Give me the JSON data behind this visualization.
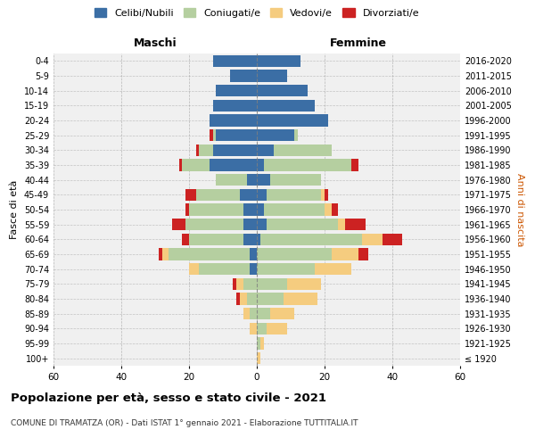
{
  "age_groups": [
    "100+",
    "95-99",
    "90-94",
    "85-89",
    "80-84",
    "75-79",
    "70-74",
    "65-69",
    "60-64",
    "55-59",
    "50-54",
    "45-49",
    "40-44",
    "35-39",
    "30-34",
    "25-29",
    "20-24",
    "15-19",
    "10-14",
    "5-9",
    "0-4"
  ],
  "birth_years": [
    "≤ 1920",
    "1921-1925",
    "1926-1930",
    "1931-1935",
    "1936-1940",
    "1941-1945",
    "1946-1950",
    "1951-1955",
    "1956-1960",
    "1961-1965",
    "1966-1970",
    "1971-1975",
    "1976-1980",
    "1981-1985",
    "1986-1990",
    "1991-1995",
    "1996-2000",
    "2001-2005",
    "2006-2010",
    "2011-2015",
    "2016-2020"
  ],
  "male": {
    "celibi": [
      0,
      0,
      0,
      0,
      0,
      0,
      2,
      2,
      4,
      4,
      4,
      5,
      3,
      14,
      13,
      12,
      14,
      13,
      12,
      8,
      13
    ],
    "coniugati": [
      0,
      0,
      0,
      2,
      3,
      4,
      15,
      24,
      16,
      17,
      16,
      13,
      9,
      8,
      4,
      1,
      0,
      0,
      0,
      0,
      0
    ],
    "vedovi": [
      0,
      0,
      2,
      2,
      2,
      2,
      3,
      2,
      0,
      0,
      0,
      0,
      0,
      0,
      0,
      0,
      0,
      0,
      0,
      0,
      0
    ],
    "divorziati": [
      0,
      0,
      0,
      0,
      1,
      1,
      0,
      1,
      2,
      4,
      1,
      3,
      0,
      1,
      1,
      1,
      0,
      0,
      0,
      0,
      0
    ]
  },
  "female": {
    "nubili": [
      0,
      0,
      0,
      0,
      0,
      0,
      0,
      0,
      1,
      3,
      2,
      3,
      4,
      2,
      5,
      11,
      21,
      17,
      15,
      9,
      13
    ],
    "coniugate": [
      0,
      1,
      3,
      4,
      8,
      9,
      17,
      22,
      30,
      21,
      18,
      16,
      15,
      26,
      17,
      1,
      0,
      0,
      0,
      0,
      0
    ],
    "vedove": [
      1,
      1,
      6,
      7,
      10,
      10,
      11,
      8,
      6,
      2,
      2,
      1,
      0,
      0,
      0,
      0,
      0,
      0,
      0,
      0,
      0
    ],
    "divorziate": [
      0,
      0,
      0,
      0,
      0,
      0,
      0,
      3,
      6,
      6,
      2,
      1,
      0,
      2,
      0,
      0,
      0,
      0,
      0,
      0,
      0
    ]
  },
  "colors": {
    "celibi": "#3b6ea5",
    "coniugati": "#b5cfa0",
    "vedovi": "#f5cc7f",
    "divorziati": "#cc2222"
  },
  "title": "Popolazione per età, sesso e stato civile - 2021",
  "subtitle": "COMUNE DI TRAMATZA (OR) - Dati ISTAT 1° gennaio 2021 - Elaborazione TUTTITALIA.IT",
  "xlabel_left": "Maschi",
  "xlabel_right": "Femmine",
  "ylabel_left": "Fasce di età",
  "ylabel_right": "Anni di nascita",
  "xlim": 60,
  "xticks": [
    -60,
    -40,
    -20,
    0,
    20,
    40,
    60
  ],
  "legend_labels": [
    "Celibi/Nubili",
    "Coniugati/e",
    "Vedovi/e",
    "Divorziati/e"
  ],
  "bg_color": "#f0f0f0"
}
